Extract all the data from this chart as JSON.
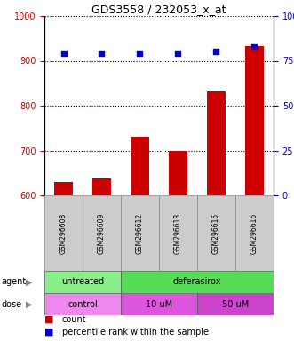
{
  "title": "GDS3558 / 232053_x_at",
  "samples": [
    "GSM296608",
    "GSM296609",
    "GSM296612",
    "GSM296613",
    "GSM296615",
    "GSM296616"
  ],
  "counts": [
    630,
    638,
    730,
    700,
    832,
    932
  ],
  "percentiles": [
    79,
    79,
    79,
    79,
    80,
    83
  ],
  "ylim_left": [
    600,
    1000
  ],
  "ylim_right": [
    0,
    100
  ],
  "yticks_left": [
    600,
    700,
    800,
    900,
    1000
  ],
  "yticks_right": [
    0,
    25,
    50,
    75,
    100
  ],
  "bar_color": "#cc0000",
  "dot_color": "#0000cc",
  "agent_color_untreated": "#88ee88",
  "agent_color_deferasirox": "#55dd55",
  "dose_color_control": "#ee88ee",
  "dose_color_10uM": "#dd55dd",
  "dose_color_50uM": "#cc44cc",
  "agent_labels": [
    [
      "untreated",
      0,
      2
    ],
    [
      "deferasirox",
      2,
      6
    ]
  ],
  "dose_labels": [
    [
      "control",
      0,
      2
    ],
    [
      "10 uM",
      2,
      4
    ],
    [
      "50 uM",
      4,
      6
    ]
  ],
  "legend_count_label": "count",
  "legend_pct_label": "percentile rank within the sample",
  "left_color": "#cc0000",
  "right_color": "#0000cc",
  "tick_label_area_color": "#cccccc",
  "grid_color": "#000000"
}
